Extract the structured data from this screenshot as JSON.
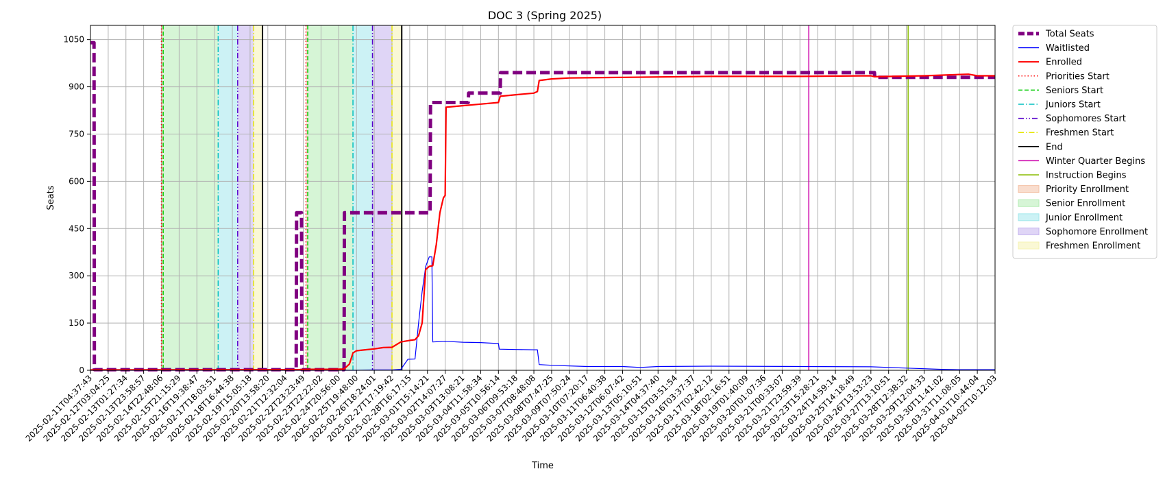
{
  "chart_data": {
    "type": "line",
    "title": "DOC 3 (Spring 2025)",
    "xlabel": "Time",
    "ylabel": "Seats",
    "ylim": [
      0,
      1095
    ],
    "yticks": [
      0,
      150,
      300,
      450,
      600,
      750,
      900,
      1050
    ],
    "grid": true,
    "legend_position": "outside-top-right",
    "x_tick_labels": [
      "2025-02-11T04:37:43",
      "2025-02-12T03:04:25",
      "2025-02-13T01:27:34",
      "2025-02-13T23:58:57",
      "2025-02-14T22:48:06",
      "2025-02-15T21:15:29",
      "2025-02-16T19:38:47",
      "2025-02-17T18:03:51",
      "2025-02-18T16:44:38",
      "2025-02-19T15:05:18",
      "2025-02-20T13:58:20",
      "2025-02-21T12:32:04",
      "2025-02-22T23:23:49",
      "2025-02-23T22:22:02",
      "2025-02-24T20:56:00",
      "2025-02-25T19:48:00",
      "2025-02-26T18:24:01",
      "2025-02-27T17:19:42",
      "2025-02-28T16:17:15",
      "2025-03-01T15:14:21",
      "2025-03-02T14:07:27",
      "2025-03-03T13:08:21",
      "2025-03-04T11:58:34",
      "2025-03-05T10:56:14",
      "2025-03-06T09:53:18",
      "2025-03-07T08:48:08",
      "2025-03-08T07:47:25",
      "2025-03-09T07:50:24",
      "2025-03-10T07:20:17",
      "2025-03-11T06:40:38",
      "2025-03-12T06:07:42",
      "2025-03-13T05:10:51",
      "2025-03-14T04:37:40",
      "2025-03-15T03:51:54",
      "2025-03-16T03:37:37",
      "2025-03-17T02:42:12",
      "2025-03-18T02:16:51",
      "2025-03-19T01:40:09",
      "2025-03-20T01:07:36",
      "2025-03-21T00:33:07",
      "2025-03-21T23:59:39",
      "2025-03-23T15:28:21",
      "2025-03-24T14:59:14",
      "2025-03-25T14:18:49",
      "2025-03-26T13:53:23",
      "2025-03-27T13:10:51",
      "2025-03-28T12:38:32",
      "2025-03-29T12:04:33",
      "2025-03-30T11:41:02",
      "2025-03-31T11:08:05",
      "2025-04-01T10:44:04",
      "2025-04-02T10:12:03"
    ],
    "x_range": [
      0,
      51
    ],
    "series": [
      {
        "name": "Total Seats",
        "color": "#800080",
        "style": "dashed-thick",
        "points": [
          [
            0.0,
            1040
          ],
          [
            0.2,
            1040
          ],
          [
            0.22,
            2
          ],
          [
            5.0,
            2
          ],
          [
            10.0,
            2
          ],
          [
            11.6,
            2
          ],
          [
            11.62,
            500
          ],
          [
            11.9,
            500
          ],
          [
            11.92,
            2
          ],
          [
            14.3,
            2
          ],
          [
            14.32,
            500
          ],
          [
            17.0,
            500
          ],
          [
            19.15,
            500
          ],
          [
            19.17,
            850
          ],
          [
            21.3,
            850
          ],
          [
            21.32,
            880
          ],
          [
            23.1,
            880
          ],
          [
            23.12,
            945
          ],
          [
            37.0,
            945
          ],
          [
            44.2,
            945
          ],
          [
            44.22,
            930
          ],
          [
            51.0,
            930
          ]
        ]
      },
      {
        "name": "Waitlisted",
        "color": "#0000ff",
        "style": "solid",
        "points": [
          [
            0.0,
            0
          ],
          [
            15.0,
            0
          ],
          [
            16.0,
            1
          ],
          [
            17.0,
            1
          ],
          [
            17.5,
            3
          ],
          [
            17.9,
            35
          ],
          [
            18.3,
            36
          ],
          [
            18.5,
            150
          ],
          [
            18.7,
            250
          ],
          [
            18.9,
            330
          ],
          [
            19.1,
            360
          ],
          [
            19.25,
            360
          ],
          [
            19.3,
            90
          ],
          [
            20.0,
            92
          ],
          [
            21.0,
            89
          ],
          [
            22.0,
            88
          ],
          [
            23.0,
            85
          ],
          [
            23.05,
            67
          ],
          [
            24.0,
            66
          ],
          [
            25.0,
            65
          ],
          [
            25.2,
            65
          ],
          [
            25.3,
            18
          ],
          [
            26.0,
            16
          ],
          [
            27.0,
            14
          ],
          [
            28.0,
            12
          ],
          [
            30.0,
            12
          ],
          [
            31.0,
            9
          ],
          [
            32.0,
            12
          ],
          [
            35.0,
            13
          ],
          [
            40.0,
            12
          ],
          [
            44.0,
            11
          ],
          [
            45.0,
            9
          ],
          [
            46.0,
            7
          ],
          [
            47.0,
            5
          ],
          [
            48.0,
            3
          ],
          [
            49.0,
            2
          ],
          [
            51.0,
            2
          ]
        ]
      },
      {
        "name": "Enrolled",
        "color": "#ff0000",
        "style": "solid-thick",
        "points": [
          [
            0.0,
            1
          ],
          [
            11.6,
            2
          ],
          [
            12.5,
            3
          ],
          [
            13.5,
            3
          ],
          [
            14.3,
            4
          ],
          [
            14.6,
            20
          ],
          [
            14.8,
            55
          ],
          [
            15.0,
            62
          ],
          [
            15.5,
            65
          ],
          [
            16.0,
            68
          ],
          [
            16.5,
            72
          ],
          [
            17.0,
            73
          ],
          [
            17.5,
            90
          ],
          [
            18.0,
            95
          ],
          [
            18.3,
            97
          ],
          [
            18.5,
            110
          ],
          [
            18.7,
            150
          ],
          [
            18.9,
            320
          ],
          [
            19.1,
            330
          ],
          [
            19.3,
            332
          ],
          [
            19.5,
            400
          ],
          [
            19.7,
            500
          ],
          [
            19.9,
            548
          ],
          [
            20.0,
            555
          ],
          [
            20.05,
            835
          ],
          [
            21.0,
            840
          ],
          [
            22.0,
            845
          ],
          [
            23.0,
            850
          ],
          [
            23.1,
            870
          ],
          [
            24.0,
            875
          ],
          [
            25.0,
            880
          ],
          [
            25.2,
            885
          ],
          [
            25.3,
            920
          ],
          [
            26.0,
            925
          ],
          [
            27.0,
            928
          ],
          [
            30.0,
            930
          ],
          [
            35.0,
            933
          ],
          [
            40.0,
            933
          ],
          [
            44.0,
            935
          ],
          [
            44.2,
            932
          ],
          [
            47.0,
            935
          ],
          [
            48.5,
            938
          ],
          [
            49.5,
            940
          ],
          [
            50.0,
            935
          ],
          [
            51.0,
            935
          ]
        ]
      }
    ],
    "markers": [
      {
        "name": "Priorities Start",
        "color": "#ff0000",
        "style": "dotted",
        "x": [
          4.0,
          12.15
        ]
      },
      {
        "name": "Seniors Start",
        "color": "#00cc00",
        "style": "dashed",
        "x": [
          4.1,
          12.25
        ]
      },
      {
        "name": "Juniors Start",
        "color": "#00bfbf",
        "style": "dashdot",
        "x": [
          7.2,
          14.8
        ]
      },
      {
        "name": "Sophomores Start",
        "color": "#5500cc",
        "style": "dashdotdot",
        "x": [
          8.3,
          15.9
        ]
      },
      {
        "name": "Freshmen Start",
        "color": "#e6e600",
        "style": "dashdot",
        "x": [
          9.2,
          17.0
        ]
      },
      {
        "name": "End",
        "color": "#000000",
        "style": "solid",
        "x": [
          9.7,
          17.55
        ]
      },
      {
        "name": "Winter Quarter Begins",
        "color": "#cc00aa",
        "style": "solid",
        "x": [
          40.5
        ]
      },
      {
        "name": "Instruction Begins",
        "color": "#88bb00",
        "style": "solid",
        "x": [
          46.1
        ]
      }
    ],
    "bands": [
      {
        "name": "Priority Enrollment",
        "color": "#f4c1a6",
        "ranges": [
          [
            4.0,
            4.1
          ],
          [
            12.15,
            12.25
          ]
        ]
      },
      {
        "name": "Senior Enrollment",
        "color": "#b4ecb4",
        "ranges": [
          [
            4.1,
            7.2
          ],
          [
            12.25,
            14.8
          ]
        ]
      },
      {
        "name": "Junior Enrollment",
        "color": "#a3e8ec",
        "ranges": [
          [
            7.2,
            8.3
          ],
          [
            14.8,
            15.9
          ]
        ]
      },
      {
        "name": "Sophomore Enrollment",
        "color": "#c5b3ef",
        "ranges": [
          [
            8.3,
            9.2
          ],
          [
            15.9,
            17.0
          ]
        ]
      },
      {
        "name": "Freshmen Enrollment",
        "color": "#f5f3b3",
        "ranges": [
          [
            9.2,
            9.7
          ],
          [
            17.0,
            17.55
          ]
        ]
      }
    ],
    "legend_order": [
      "Total Seats",
      "Waitlisted",
      "Enrolled",
      "Priorities Start",
      "Seniors Start",
      "Juniors Start",
      "Sophomores Start",
      "Freshmen Start",
      "End",
      "Winter Quarter Begins",
      "Instruction Begins",
      "Priority Enrollment",
      "Senior Enrollment",
      "Junior Enrollment",
      "Sophomore Enrollment",
      "Freshmen Enrollment"
    ]
  }
}
